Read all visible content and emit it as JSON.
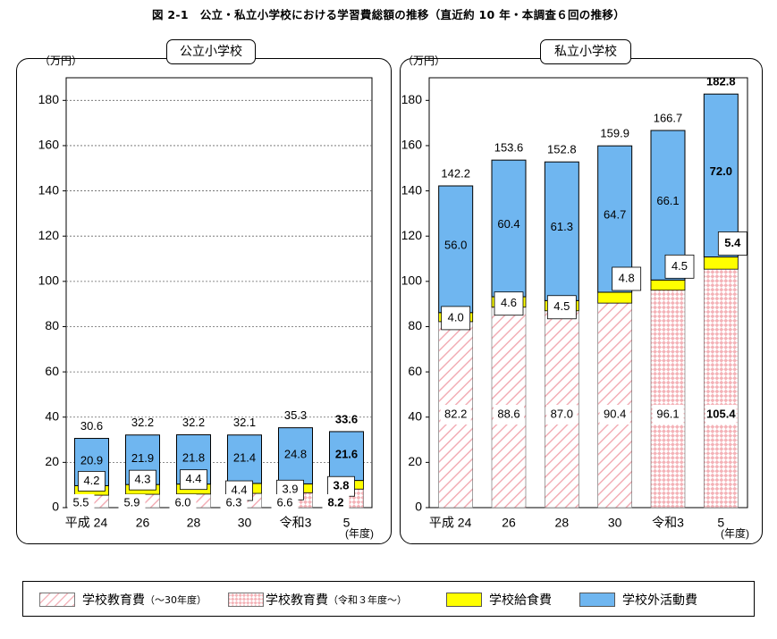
{
  "title": "図 2-1　公立・私立小学校における学習費総額の推移（直近約 10 年・本調査６回の推移）",
  "colors": {
    "hatch_diag": "#f2a9b1",
    "hatch_check": "#f4b3b8",
    "lunch": "#ffff00",
    "outside": "#6fb6f0",
    "grid": "#666666"
  },
  "legend": {
    "items": [
      {
        "label": "学校教育費",
        "sub": "（～30年度）",
        "swatch": "diag"
      },
      {
        "label": "学校教育費",
        "sub": "（令和３年度～）",
        "swatch": "check"
      },
      {
        "label": "学校給食費",
        "sub": "",
        "swatch": "lunch"
      },
      {
        "label": "学校外活動費",
        "sub": "",
        "swatch": "outside"
      }
    ]
  },
  "chart_data": [
    {
      "type": "bar",
      "stacked": true,
      "panel_title": "公立小学校",
      "ylabel": "（万円）",
      "xunit": "(年度)",
      "ylim": [
        0,
        190
      ],
      "yticks": [
        0,
        20,
        40,
        60,
        80,
        100,
        120,
        140,
        160,
        180
      ],
      "grid": true,
      "categories": [
        "平成 24",
        "26",
        "28",
        "30",
        "令和3",
        "5"
      ],
      "series": [
        {
          "name": "学校教育費",
          "values": [
            5.5,
            5.9,
            6.0,
            6.3,
            6.6,
            8.2
          ]
        },
        {
          "name": "学校給食費",
          "values": [
            4.2,
            4.3,
            4.4,
            4.4,
            3.9,
            3.8
          ]
        },
        {
          "name": "学校外活動費",
          "values": [
            20.9,
            21.9,
            21.8,
            21.4,
            24.8,
            21.6
          ]
        }
      ],
      "totals": [
        30.6,
        32.2,
        32.2,
        32.1,
        35.3,
        33.6
      ],
      "labels": {
        "education": [
          "5.5",
          "5.9",
          "6.0",
          "6.3",
          "6.6",
          "8.2"
        ],
        "lunch": [
          "4.2",
          "4.3",
          "4.4",
          "4.4",
          "3.9",
          "3.8"
        ],
        "outside": [
          "20.9",
          "21.9",
          "21.8",
          "21.4",
          "24.8",
          "21.6"
        ],
        "total": [
          "30.6",
          "32.2",
          "32.2",
          "32.1",
          "35.3",
          "33.6"
        ]
      }
    },
    {
      "type": "bar",
      "stacked": true,
      "panel_title": "私立小学校",
      "ylabel": "（万円）",
      "xunit": "(年度)",
      "ylim": [
        0,
        190
      ],
      "yticks": [
        0,
        20,
        40,
        60,
        80,
        100,
        120,
        140,
        160,
        180
      ],
      "grid": false,
      "categories": [
        "平成 24",
        "26",
        "28",
        "30",
        "令和3",
        "5"
      ],
      "series": [
        {
          "name": "学校教育費",
          "values": [
            82.2,
            88.6,
            87.0,
            90.4,
            96.1,
            105.4
          ]
        },
        {
          "name": "学校給食費",
          "values": [
            4.0,
            4.6,
            4.5,
            4.8,
            4.5,
            5.4
          ]
        },
        {
          "name": "学校外活動費",
          "values": [
            56.0,
            60.4,
            61.3,
            64.7,
            66.1,
            72.0
          ]
        }
      ],
      "totals": [
        142.2,
        153.6,
        152.8,
        159.9,
        166.7,
        182.8
      ],
      "labels": {
        "education": [
          "82.2",
          "88.6",
          "87.0",
          "90.4",
          "96.1",
          "105.4"
        ],
        "lunch": [
          "4.0",
          "4.6",
          "4.5",
          "4.8",
          "4.5",
          "5.4"
        ],
        "outside": [
          "56.0",
          "60.4",
          "61.3",
          "64.7",
          "66.1",
          "72.0"
        ],
        "total": [
          "142.2",
          "153.6",
          "152.8",
          "159.9",
          "166.7",
          "182.8"
        ]
      }
    }
  ]
}
